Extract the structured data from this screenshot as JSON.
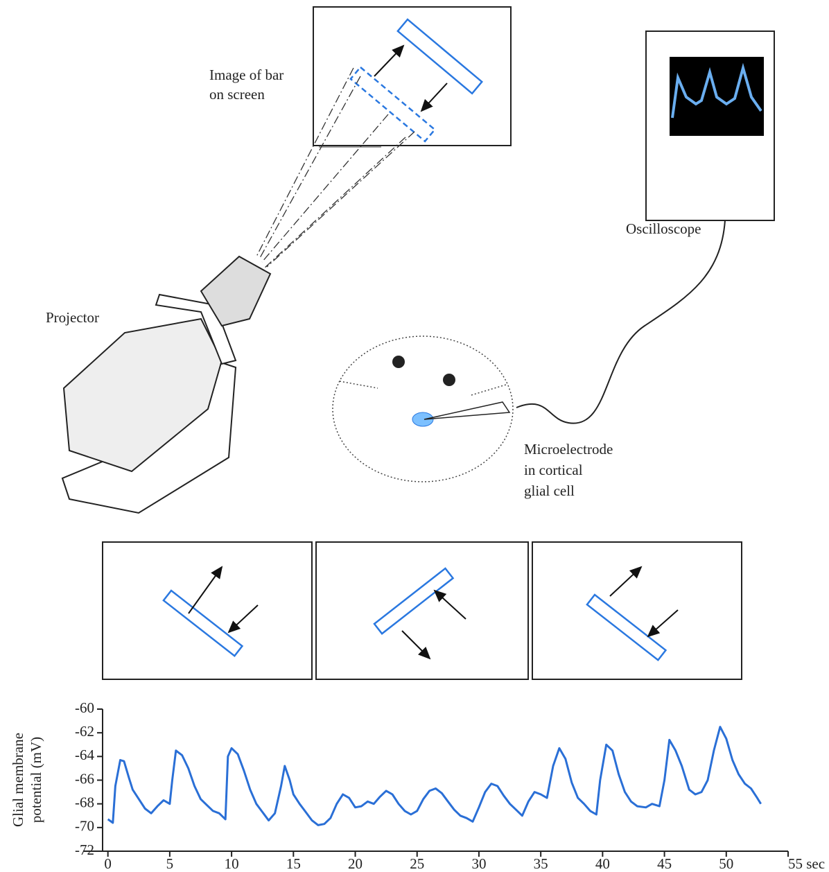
{
  "labels": {
    "screen_image": [
      "Image of bar",
      "on screen"
    ],
    "oscilloscope": "Oscilloscope",
    "projector": "Projector",
    "microelectrode": [
      "Microelectrode",
      "in cortical",
      "glial cell"
    ]
  },
  "chart_data": {
    "type": "line",
    "ylabel": [
      "Glial membrane",
      "potential (mV)"
    ],
    "x": [
      0,
      0.4,
      0.6,
      1.0,
      1.3,
      1.7,
      2.0,
      2.5,
      3.0,
      3.5,
      4.0,
      4.5,
      5.0,
      5.2,
      5.5,
      6.0,
      6.5,
      7.0,
      7.5,
      8.0,
      8.5,
      9.0,
      9.5,
      9.7,
      10.0,
      10.5,
      11.0,
      11.5,
      12.0,
      12.5,
      13.0,
      13.5,
      14.0,
      14.3,
      14.7,
      15.0,
      15.5,
      16.0,
      16.5,
      17.0,
      17.5,
      18.0,
      18.5,
      19.0,
      19.5,
      20.0,
      20.5,
      21.0,
      21.5,
      22.0,
      22.5,
      23.0,
      23.5,
      24.0,
      24.5,
      25.0,
      25.5,
      26.0,
      26.5,
      27.0,
      27.5,
      28.0,
      28.5,
      29.0,
      29.5,
      30.0,
      30.5,
      31.0,
      31.5,
      32.0,
      32.5,
      33.0,
      33.5,
      34.0,
      34.5,
      35.0,
      35.5,
      36.0,
      36.5,
      37.0,
      37.5,
      38.0,
      38.5,
      39.0,
      39.5,
      39.8,
      40.3,
      40.8,
      41.3,
      41.8,
      42.3,
      42.8,
      43.5,
      44.0,
      44.6,
      45.0,
      45.4,
      45.9,
      46.4,
      47.0,
      47.5,
      48.0,
      48.5,
      49.0,
      49.5,
      50.0,
      50.5,
      51.0,
      51.5,
      52.0,
      52.5,
      52.8
    ],
    "values": [
      -69.3,
      -69.6,
      -66.5,
      -64.3,
      -64.4,
      -65.8,
      -66.8,
      -67.6,
      -68.4,
      -68.8,
      -68.2,
      -67.7,
      -68.0,
      -66.0,
      -63.5,
      -63.9,
      -65.0,
      -66.5,
      -67.6,
      -68.1,
      -68.6,
      -68.8,
      -69.3,
      -64.0,
      -63.3,
      -63.8,
      -65.2,
      -66.8,
      -68.0,
      -68.7,
      -69.4,
      -68.8,
      -66.5,
      -64.8,
      -66.0,
      -67.2,
      -68.0,
      -68.7,
      -69.4,
      -69.8,
      -69.7,
      -69.2,
      -68.0,
      -67.2,
      -67.5,
      -68.3,
      -68.2,
      -67.8,
      -68.0,
      -67.4,
      -66.9,
      -67.2,
      -68.0,
      -68.6,
      -68.9,
      -68.6,
      -67.6,
      -66.9,
      -66.7,
      -67.1,
      -67.8,
      -68.5,
      -69.0,
      -69.2,
      -69.5,
      -68.3,
      -67.0,
      -66.3,
      -66.5,
      -67.3,
      -68.0,
      -68.5,
      -69.0,
      -67.8,
      -67.0,
      -67.2,
      -67.5,
      -64.8,
      -63.3,
      -64.2,
      -66.2,
      -67.5,
      -68.0,
      -68.6,
      -68.9,
      -66.0,
      -63.0,
      -63.5,
      -65.5,
      -67.0,
      -67.8,
      -68.2,
      -68.3,
      -68.0,
      -68.2,
      -66.0,
      -62.6,
      -63.5,
      -64.8,
      -66.8,
      -67.2,
      -67.0,
      -66.0,
      -63.5,
      -61.5,
      -62.5,
      -64.3,
      -65.5,
      -66.3,
      -66.7,
      -67.5,
      -68.0
    ],
    "color": "#2a6fd6",
    "xlim": [
      -2,
      55
    ],
    "ylim": [
      -72,
      -60
    ],
    "xticks": [
      0,
      5,
      10,
      15,
      20,
      25,
      30,
      35,
      40,
      45,
      50,
      {
        "value": 55,
        "label": "55 sec"
      }
    ],
    "yticks": [
      -60,
      -62,
      -64,
      -66,
      -68,
      -70,
      -72
    ]
  }
}
